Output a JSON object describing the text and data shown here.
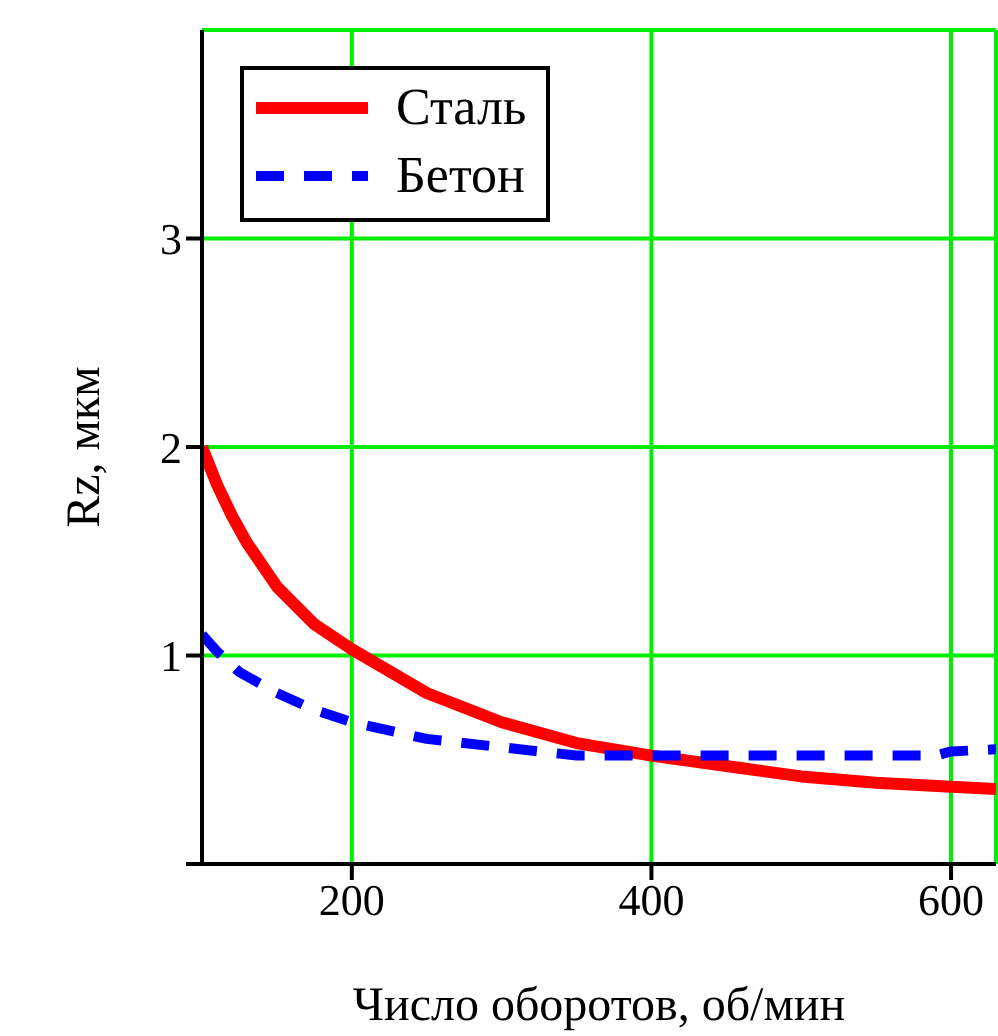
{
  "chart_data": {
    "type": "line",
    "xlabel": "Число оборотов, об/мин",
    "ylabel": "Rz, мкм",
    "xlim": [
      100,
      630
    ],
    "xticks": [
      200,
      400,
      600
    ],
    "ylim": [
      0,
      4
    ],
    "yticks": [
      {
        "value": 0,
        "label": null
      },
      1,
      2,
      3
    ],
    "grid": true,
    "legend": "top left",
    "marker": "none",
    "series": [
      {
        "name": "Сталь",
        "color": "#ff0000",
        "line_style": "solid",
        "x": [
          100,
          110,
          120,
          130,
          150,
          175,
          200,
          250,
          300,
          350,
          400,
          450,
          500,
          550,
          600,
          630
        ],
        "values": [
          2.0,
          1.82,
          1.67,
          1.54,
          1.33,
          1.15,
          1.03,
          0.82,
          0.68,
          0.58,
          0.52,
          0.47,
          0.42,
          0.39,
          0.37,
          0.36
        ]
      },
      {
        "name": "Бетон",
        "color": "#0000ff",
        "line_style": "dashed",
        "x": [
          100,
          110,
          125,
          150,
          175,
          200,
          250,
          300,
          350,
          400,
          500,
          590,
          600,
          630
        ],
        "values": [
          1.1,
          1.02,
          0.92,
          0.82,
          0.74,
          0.68,
          0.6,
          0.56,
          0.52,
          0.52,
          0.52,
          0.52,
          0.54,
          0.55
        ]
      }
    ]
  }
}
